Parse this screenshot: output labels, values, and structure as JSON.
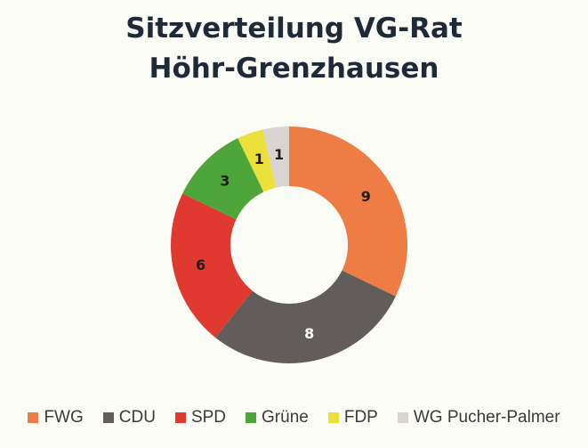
{
  "chart_data": {
    "type": "pie",
    "donut": true,
    "title": [
      "Sitzverteilung VG-Rat",
      "Höhr-Grenzhausen"
    ],
    "categories": [
      "FWG",
      "CDU",
      "SPD",
      "Grüne",
      "FDP",
      "WG Pucher-Palmer"
    ],
    "values": [
      9,
      8,
      6,
      3,
      1,
      1
    ],
    "colors": [
      "#ed7d45",
      "#625d5a",
      "#e0392f",
      "#4ea53a",
      "#ece03a",
      "#d9d3d1"
    ],
    "label_colors": [
      "#1f1f1f",
      "#ffffff",
      "#1f1f1f",
      "#1f1f1f",
      "#1f1f1f",
      "#1f1f1f"
    ],
    "legend_position": "bottom"
  }
}
